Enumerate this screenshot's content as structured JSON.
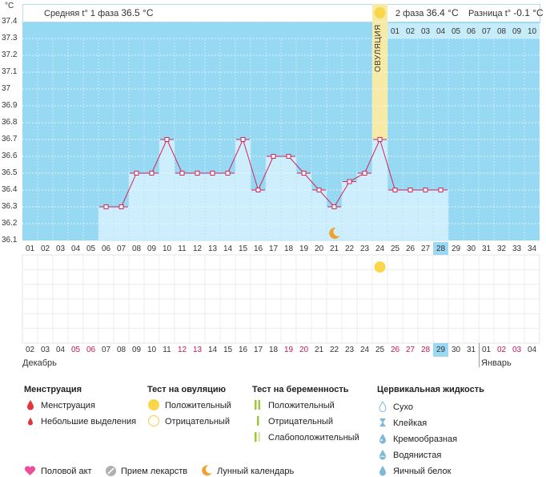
{
  "unit": "°C",
  "header": {
    "phase1_label": "Средняя t° 1 фаза",
    "phase1_value": "36.5 °C",
    "phase2_label": "2 фаза",
    "phase2_value": "36.4 °C",
    "diff_label": "Разница t°",
    "diff_value": "-0.1 °C"
  },
  "ovulation_label": "ОВУЛЯЦИЯ",
  "after_ovulation_days": [
    "01",
    "02",
    "03",
    "04",
    "05",
    "06",
    "07",
    "08",
    "09",
    "10"
  ],
  "colors": {
    "sky": "#97d8f3",
    "fill": "#cdeefc",
    "line": "#d4245a",
    "ovulation": "#f7eaa6",
    "sun": "#f9d64b",
    "moon": "#f2a030",
    "highlight": "#9ad8f3"
  },
  "chart_data": {
    "type": "line",
    "y_ticks": [
      "37.4",
      "37.3",
      "37.2",
      "37.1",
      "37",
      "36.9",
      "36.8",
      "36.7",
      "36.6",
      "36.5",
      "36.4",
      "36.3",
      "36.2",
      "36.1"
    ],
    "ylim": [
      36.1,
      37.4
    ],
    "cycle_days": [
      "01",
      "02",
      "03",
      "04",
      "05",
      "06",
      "07",
      "08",
      "09",
      "10",
      "11",
      "12",
      "13",
      "14",
      "15",
      "16",
      "17",
      "18",
      "19",
      "20",
      "21",
      "22",
      "23",
      "24",
      "25",
      "26",
      "27",
      "28",
      "29",
      "30",
      "31",
      "32",
      "33",
      "34"
    ],
    "today_index": 27,
    "ovulation_day_index": 23,
    "temperature_series": [
      {
        "day": 6,
        "value": 36.3
      },
      {
        "day": 7,
        "value": 36.3
      },
      {
        "day": 8,
        "value": 36.5
      },
      {
        "day": 9,
        "value": 36.5
      },
      {
        "day": 10,
        "value": 36.7
      },
      {
        "day": 11,
        "value": 36.5
      },
      {
        "day": 12,
        "value": 36.5
      },
      {
        "day": 13,
        "value": 36.5
      },
      {
        "day": 14,
        "value": 36.5
      },
      {
        "day": 15,
        "value": 36.7
      },
      {
        "day": 16,
        "value": 36.4
      },
      {
        "day": 17,
        "value": 36.6
      },
      {
        "day": 18,
        "value": 36.6
      },
      {
        "day": 19,
        "value": 36.5
      },
      {
        "day": 20,
        "value": 36.4
      },
      {
        "day": 21,
        "value": 36.3
      },
      {
        "day": 22,
        "value": 36.45
      },
      {
        "day": 23,
        "value": 36.5
      },
      {
        "day": 24,
        "value": 36.7
      },
      {
        "day": 25,
        "value": 36.4
      },
      {
        "day": 26,
        "value": 36.4
      },
      {
        "day": 27,
        "value": 36.4
      },
      {
        "day": 28,
        "value": 36.4
      }
    ],
    "moon_day": 21,
    "ovulation_test_positive_day": 24
  },
  "calendar": {
    "dates": [
      "02",
      "03",
      "04",
      "05",
      "06",
      "07",
      "08",
      "09",
      "10",
      "11",
      "12",
      "13",
      "14",
      "15",
      "16",
      "17",
      "18",
      "19",
      "20",
      "21",
      "22",
      "23",
      "24",
      "25",
      "26",
      "27",
      "28",
      "29",
      "30",
      "31",
      "01",
      "02",
      "03",
      "04"
    ],
    "red_indexes": [
      3,
      4,
      10,
      11,
      17,
      18,
      24,
      25,
      26,
      27,
      31,
      32
    ],
    "today_index": 27,
    "month_left": "Декабрь",
    "month_right": "Январь"
  },
  "legend": {
    "menstruation": {
      "title": "Менструация",
      "items": [
        "Менструация",
        "Небольшие выделения"
      ]
    },
    "ovulation_test": {
      "title": "Тест на овуляцию",
      "items": [
        "Положительный",
        "Отрицательный"
      ]
    },
    "pregnancy_test": {
      "title": "Тест на беременность",
      "items": [
        "Положительный",
        "Отрицательный",
        "Слабоположительный"
      ]
    },
    "cervical": {
      "title": "Цервикальная жидкость",
      "items": [
        "Сухо",
        "Клейкая",
        "Кремообразная",
        "Водянистая",
        "Яичный белок"
      ]
    },
    "bottom": [
      "Половой акт",
      "Прием лекарств",
      "Лунный календарь"
    ]
  }
}
